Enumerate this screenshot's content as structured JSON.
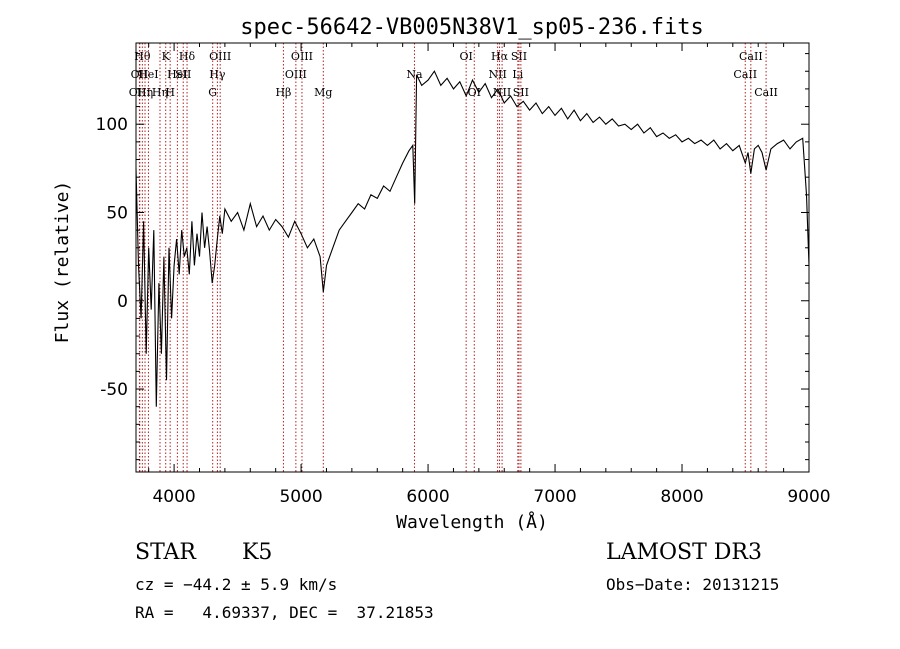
{
  "chart_data": {
    "type": "line",
    "title": "spec-56642-VB005N38V1_sp05-236.fits",
    "xlabel": "Wavelength (Å)",
    "ylabel": "Flux (relative)",
    "xlim": [
      3700,
      9000
    ],
    "ylim": [
      -97,
      146
    ],
    "xticks": [
      4000,
      5000,
      6000,
      7000,
      8000,
      9000
    ],
    "yticks": [
      -50,
      0,
      50,
      100
    ],
    "grid": false,
    "series": [
      {
        "color": "#000000",
        "points": [
          [
            3700,
            75
          ],
          [
            3720,
            20
          ],
          [
            3740,
            -10
          ],
          [
            3760,
            45
          ],
          [
            3780,
            -30
          ],
          [
            3800,
            30
          ],
          [
            3820,
            -5
          ],
          [
            3840,
            40
          ],
          [
            3860,
            -60
          ],
          [
            3880,
            10
          ],
          [
            3900,
            -30
          ],
          [
            3920,
            25
          ],
          [
            3940,
            -45
          ],
          [
            3960,
            30
          ],
          [
            3980,
            -10
          ],
          [
            4000,
            20
          ],
          [
            4020,
            35
          ],
          [
            4040,
            15
          ],
          [
            4060,
            40
          ],
          [
            4080,
            25
          ],
          [
            4100,
            30
          ],
          [
            4120,
            15
          ],
          [
            4140,
            45
          ],
          [
            4160,
            20
          ],
          [
            4180,
            38
          ],
          [
            4200,
            25
          ],
          [
            4220,
            50
          ],
          [
            4240,
            30
          ],
          [
            4260,
            42
          ],
          [
            4280,
            28
          ],
          [
            4300,
            10
          ],
          [
            4320,
            20
          ],
          [
            4340,
            35
          ],
          [
            4360,
            48
          ],
          [
            4380,
            38
          ],
          [
            4400,
            52
          ],
          [
            4450,
            45
          ],
          [
            4500,
            50
          ],
          [
            4550,
            40
          ],
          [
            4600,
            55
          ],
          [
            4650,
            42
          ],
          [
            4700,
            48
          ],
          [
            4750,
            40
          ],
          [
            4800,
            46
          ],
          [
            4850,
            42
          ],
          [
            4900,
            36
          ],
          [
            4950,
            45
          ],
          [
            5000,
            38
          ],
          [
            5050,
            30
          ],
          [
            5100,
            35
          ],
          [
            5150,
            25
          ],
          [
            5175,
            5
          ],
          [
            5200,
            20
          ],
          [
            5250,
            30
          ],
          [
            5300,
            40
          ],
          [
            5350,
            45
          ],
          [
            5400,
            50
          ],
          [
            5450,
            55
          ],
          [
            5500,
            52
          ],
          [
            5550,
            60
          ],
          [
            5600,
            58
          ],
          [
            5650,
            65
          ],
          [
            5700,
            62
          ],
          [
            5750,
            70
          ],
          [
            5800,
            78
          ],
          [
            5850,
            85
          ],
          [
            5880,
            88
          ],
          [
            5895,
            55
          ],
          [
            5910,
            128
          ],
          [
            5950,
            122
          ],
          [
            6000,
            125
          ],
          [
            6050,
            130
          ],
          [
            6100,
            122
          ],
          [
            6150,
            126
          ],
          [
            6200,
            120
          ],
          [
            6250,
            124
          ],
          [
            6300,
            116
          ],
          [
            6350,
            125
          ],
          [
            6400,
            118
          ],
          [
            6450,
            123
          ],
          [
            6500,
            115
          ],
          [
            6550,
            120
          ],
          [
            6600,
            112
          ],
          [
            6650,
            116
          ],
          [
            6700,
            110
          ],
          [
            6750,
            113
          ],
          [
            6800,
            108
          ],
          [
            6850,
            112
          ],
          [
            6900,
            106
          ],
          [
            6950,
            110
          ],
          [
            7000,
            105
          ],
          [
            7050,
            109
          ],
          [
            7100,
            103
          ],
          [
            7150,
            108
          ],
          [
            7200,
            102
          ],
          [
            7250,
            106
          ],
          [
            7300,
            101
          ],
          [
            7350,
            104
          ],
          [
            7400,
            100
          ],
          [
            7450,
            103
          ],
          [
            7500,
            99
          ],
          [
            7550,
            100
          ],
          [
            7600,
            97
          ],
          [
            7650,
            100
          ],
          [
            7700,
            95
          ],
          [
            7750,
            98
          ],
          [
            7800,
            93
          ],
          [
            7850,
            95
          ],
          [
            7900,
            92
          ],
          [
            7950,
            94
          ],
          [
            8000,
            90
          ],
          [
            8050,
            92
          ],
          [
            8100,
            89
          ],
          [
            8150,
            91
          ],
          [
            8200,
            88
          ],
          [
            8250,
            91
          ],
          [
            8300,
            86
          ],
          [
            8350,
            89
          ],
          [
            8400,
            85
          ],
          [
            8450,
            88
          ],
          [
            8498,
            78
          ],
          [
            8520,
            84
          ],
          [
            8542,
            72
          ],
          [
            8570,
            86
          ],
          [
            8600,
            88
          ],
          [
            8630,
            84
          ],
          [
            8662,
            74
          ],
          [
            8700,
            86
          ],
          [
            8750,
            89
          ],
          [
            8800,
            91
          ],
          [
            8850,
            86
          ],
          [
            8900,
            90
          ],
          [
            8950,
            92
          ],
          [
            8980,
            60
          ],
          [
            9000,
            20
          ]
        ]
      }
    ],
    "lines": [
      {
        "wave": 3727,
        "label": "OII",
        "row": 2
      },
      {
        "wave": 3730,
        "label": "OIII",
        "row": 3
      },
      {
        "wave": 3750,
        "label": "Hθ",
        "row": 1
      },
      {
        "wave": 3771,
        "label": "Hη",
        "row": 3
      },
      {
        "wave": 3798,
        "label": "HeI",
        "row": 2
      },
      {
        "wave": 3889,
        "label": "Hη",
        "row": 3
      },
      {
        "wave": 3934,
        "label": "K",
        "row": 1
      },
      {
        "wave": 3969,
        "label": "H",
        "row": 3
      },
      {
        "wave": 4026,
        "label": "HeI",
        "row": 2
      },
      {
        "wave": 4072,
        "label": "SII",
        "row": 2
      },
      {
        "wave": 4102,
        "label": "Hδ",
        "row": 1
      },
      {
        "wave": 4304,
        "label": "G",
        "row": 3
      },
      {
        "wave": 4341,
        "label": "Hγ",
        "row": 2
      },
      {
        "wave": 4363,
        "label": "OIII",
        "row": 1
      },
      {
        "wave": 4861,
        "label": "Hβ",
        "row": 3
      },
      {
        "wave": 4959,
        "label": "OIII",
        "row": 2
      },
      {
        "wave": 5007,
        "label": "OIII",
        "row": 1
      },
      {
        "wave": 5175,
        "label": "Mg",
        "row": 3
      },
      {
        "wave": 5893,
        "label": "Na",
        "row": 2
      },
      {
        "wave": 6300,
        "label": "OI",
        "row": 1
      },
      {
        "wave": 6364,
        "label": "OI",
        "row": 3
      },
      {
        "wave": 6548,
        "label": "NII",
        "row": 2
      },
      {
        "wave": 6563,
        "label": "Hα",
        "row": 1
      },
      {
        "wave": 6583,
        "label": "NII",
        "row": 3
      },
      {
        "wave": 6707,
        "label": "Li",
        "row": 2
      },
      {
        "wave": 6716,
        "label": "SII",
        "row": 1
      },
      {
        "wave": 6731,
        "label": "SII",
        "row": 3
      },
      {
        "wave": 8498,
        "label": "CaII",
        "row": 2
      },
      {
        "wave": 8542,
        "label": "CaII",
        "row": 1
      },
      {
        "wave": 8662,
        "label": "CaII",
        "row": 3
      }
    ]
  },
  "info": {
    "object_class": "STAR",
    "subclass": "K5",
    "survey": "LAMOST DR3",
    "cz": "cz = −44.2 ± 5.9 km/s",
    "obs_date": "Obs−Date: 20131215",
    "radec": "RA =   4.69337, DEC =  37.21853"
  }
}
